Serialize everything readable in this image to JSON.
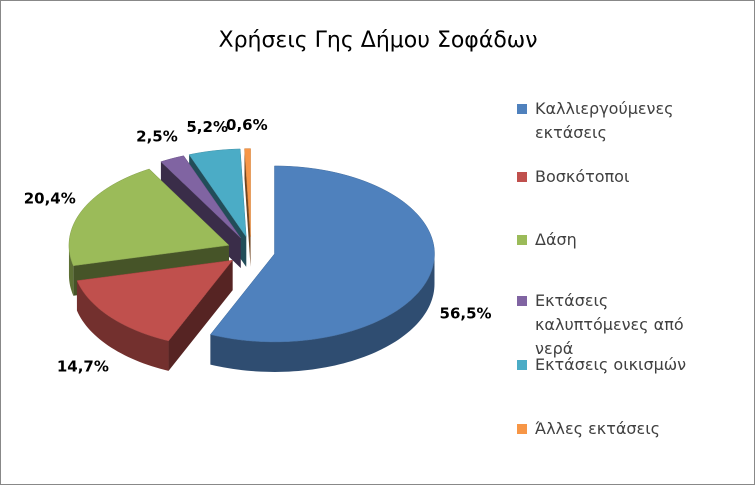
{
  "chart_data": {
    "type": "pie",
    "title": "Χρήσεις Γης Δήμου Σοφάδων",
    "categories": [
      "Καλλιεργούμενες εκτάσεις",
      "Βοσκότοποι",
      "Δάση",
      "Εκτάσεις καλυπτόμενες από νερά",
      "Εκτάσεις οικισμών",
      "Άλλες εκτάσεις"
    ],
    "values": [
      56.5,
      14.7,
      20.4,
      2.5,
      5.2,
      0.6
    ],
    "value_labels": [
      "56,5%",
      "14,7%",
      "20,4%",
      "2,5%",
      "5,2%",
      "0,6%"
    ],
    "colors": [
      "#4f81bd",
      "#c0504d",
      "#9bbb59",
      "#8064a2",
      "#4bacc6",
      "#f79646"
    ],
    "legend": "right"
  }
}
